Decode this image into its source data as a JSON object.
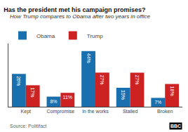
{
  "chart_data": {
    "type": "bar",
    "title": "Has the president met his campaign promises?",
    "subtitle": "How Trump compares to Obama after two years in office",
    "categories": [
      "Kept",
      "Compromise",
      "In the works",
      "Stalled",
      "Broken"
    ],
    "series": [
      {
        "name": "Obama",
        "color": "#1a6faf",
        "values": [
          26,
          8,
          44,
          15,
          7
        ],
        "value_labels": [
          "26%",
          "8%",
          "44%",
          "15%",
          "7%"
        ]
      },
      {
        "name": "Trump",
        "color": "#cc2222",
        "values": [
          17,
          11,
          27,
          27,
          18
        ],
        "value_labels": [
          "17%",
          "11%",
          "27%",
          "27%",
          "18%"
        ]
      }
    ],
    "ylim": [
      0,
      50
    ],
    "yticks": [],
    "tick_labels": "x",
    "data_labels": true,
    "grid": false,
    "legend": "top left",
    "annotations": [
      "Source: Politifact",
      "BBC"
    ]
  }
}
